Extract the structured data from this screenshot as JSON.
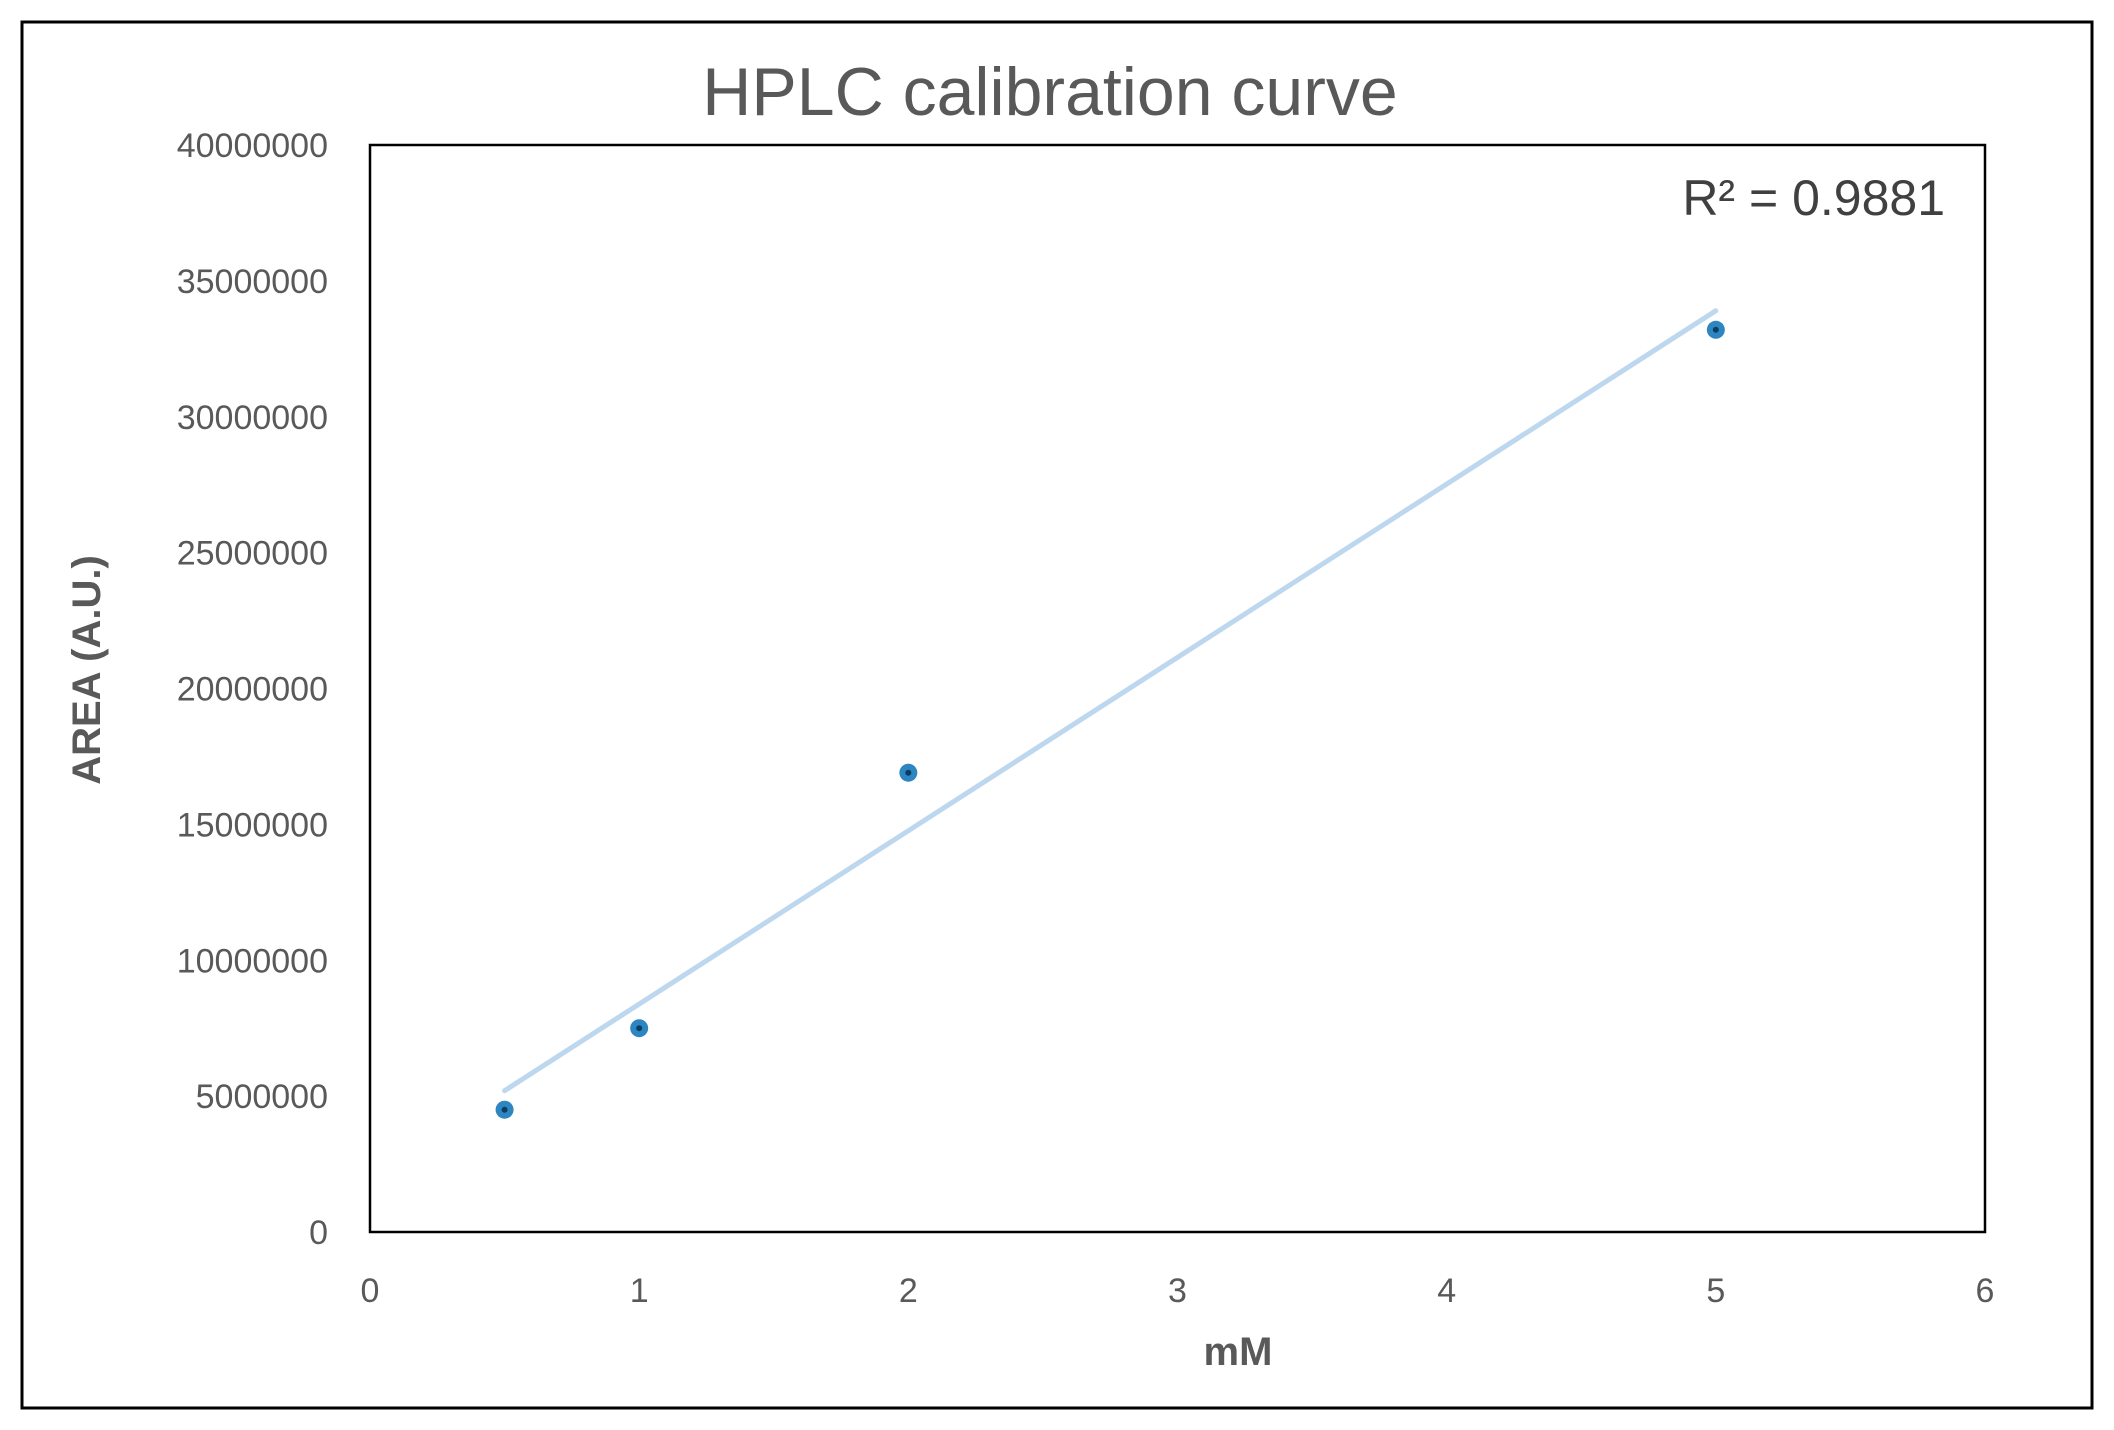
{
  "chart_data": {
    "type": "scatter",
    "title": "HPLC calibration curve",
    "xlabel": "mM",
    "ylabel": "AREA (A.U.)",
    "xlim": [
      0,
      6
    ],
    "ylim": [
      0,
      40000000
    ],
    "x_ticks": [
      "0",
      "1",
      "2",
      "3",
      "4",
      "5",
      "6"
    ],
    "y_ticks": [
      "0",
      "5000000",
      "10000000",
      "15000000",
      "20000000",
      "25000000",
      "30000000",
      "35000000",
      "40000000"
    ],
    "grid": false,
    "series": [
      {
        "x": [
          0.5,
          1,
          2,
          5
        ],
        "y": [
          4500000,
          7500000,
          16900000,
          33200000
        ],
        "color": "#2e86c1"
      }
    ],
    "trendline": {
      "type": "linear",
      "x_range": [
        0.5,
        5
      ],
      "y_range": [
        5200000,
        33900000
      ],
      "color": "#bdd7ee",
      "r_squared_label": "R² = 0.9881"
    }
  }
}
